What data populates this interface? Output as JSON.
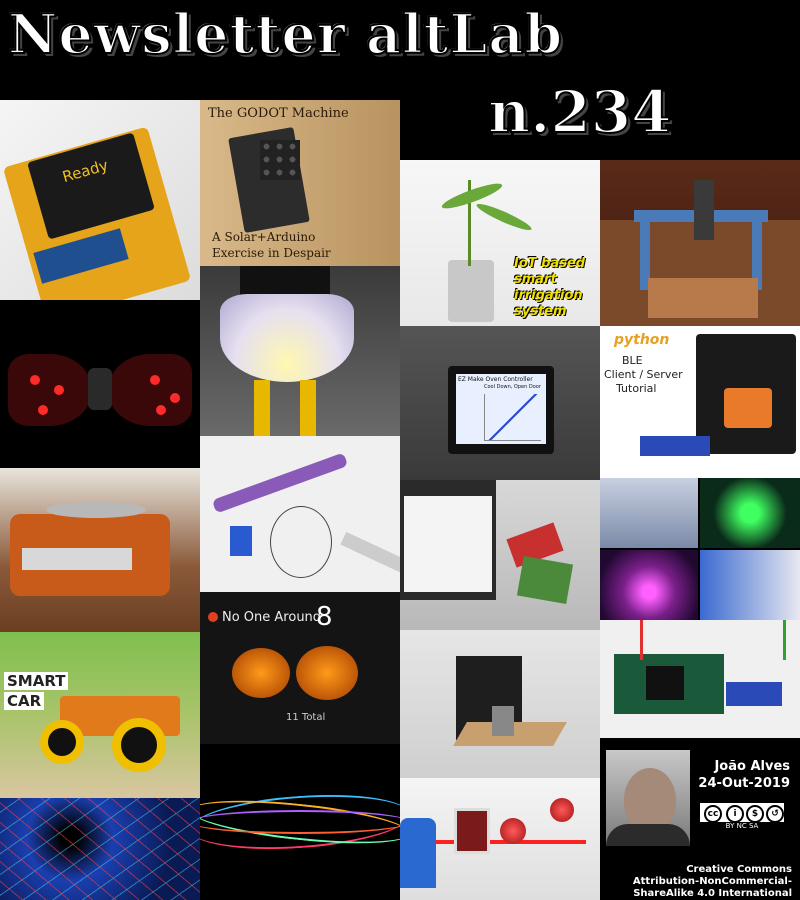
{
  "header": {
    "title": "Newsletter altLab",
    "issue": "n.234"
  },
  "tiles": {
    "godot": {
      "title": "The GODOT Machine",
      "subtitle_1": "A Solar+Arduino",
      "subtitle_2": "Exercise in Despair"
    },
    "oled": {
      "text": "Ready"
    },
    "irrigation": {
      "line_1": "IoT based",
      "line_2": "smart",
      "line_3": "irrigation",
      "line_4": "system"
    },
    "oven": {
      "title": "EZ Make Oven Controller",
      "status": "Cool Down, Open Door"
    },
    "ble": {
      "brand": "python",
      "line_1": "BLE",
      "line_2": "Client / Server",
      "line_3": "Tutorial"
    },
    "smartcar": {
      "line_1": "SMART",
      "line_2": "CAR"
    },
    "pumpkin": {
      "label": "No One Around",
      "count": "8",
      "total": "11 Total"
    }
  },
  "credit": {
    "author": "João Alves",
    "date": "24-Out-2019",
    "license_badge": "BY NC SA",
    "license_1": "Creative Commons",
    "license_2": "Attribution-NonCommercial-",
    "license_3": "ShareAlike 4.0 International"
  }
}
